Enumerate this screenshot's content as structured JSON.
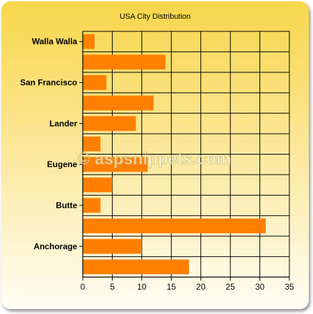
{
  "chart_data": {
    "type": "bar",
    "orientation": "horizontal",
    "title": "USA City Distribution",
    "xlabel": "",
    "ylabel": "",
    "xlim": [
      0,
      35
    ],
    "x_ticks": [
      0,
      5,
      10,
      15,
      20,
      25,
      30,
      35
    ],
    "grid": true,
    "bars_bottom_to_top": [
      18,
      10,
      31,
      3,
      5,
      11,
      3,
      9,
      12,
      4,
      14,
      2
    ],
    "labeled_categories_bottom_to_top": [
      "Anchorage",
      "Butte",
      "Eugene",
      "Lander",
      "San Francisco",
      "Walla Walla"
    ],
    "bar_color": "#ff8000"
  },
  "watermark": "© aspsnippets.com"
}
